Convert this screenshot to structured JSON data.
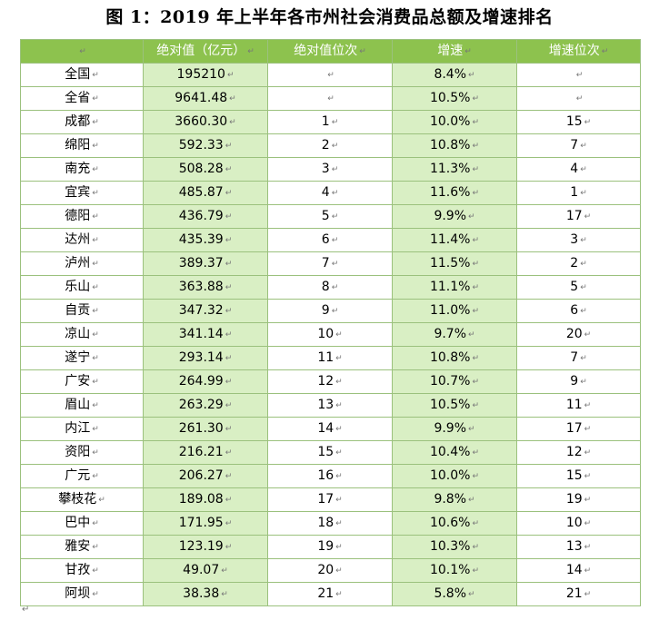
{
  "title": "图 1：2019 年上半年各市州社会消费品总额及增速排名",
  "paragraph_mark": "↵",
  "header": [
    "",
    "绝对值（亿元）",
    "绝对值位次",
    "增速",
    "增速位次"
  ],
  "rows": [
    [
      "全国",
      "195210",
      "",
      "8.4%",
      ""
    ],
    [
      "全省",
      "9641.48",
      "",
      "10.5%",
      ""
    ],
    [
      "成都",
      "3660.30",
      "1",
      "10.0%",
      "15"
    ],
    [
      "绵阳",
      "592.33",
      "2",
      "10.8%",
      "7"
    ],
    [
      "南充",
      "508.28",
      "3",
      "11.3%",
      "4"
    ],
    [
      "宜宾",
      "485.87",
      "4",
      "11.6%",
      "1"
    ],
    [
      "德阳",
      "436.79",
      "5",
      "9.9%",
      "17"
    ],
    [
      "达州",
      "435.39",
      "6",
      "11.4%",
      "3"
    ],
    [
      "泸州",
      "389.37",
      "7",
      "11.5%",
      "2"
    ],
    [
      "乐山",
      "363.88",
      "8",
      "11.1%",
      "5"
    ],
    [
      "自贡",
      "347.32",
      "9",
      "11.0%",
      "6"
    ],
    [
      "凉山",
      "341.14",
      "10",
      "9.7%",
      "20"
    ],
    [
      "遂宁",
      "293.14",
      "11",
      "10.8%",
      "7"
    ],
    [
      "广安",
      "264.99",
      "12",
      "10.7%",
      "9"
    ],
    [
      "眉山",
      "263.29",
      "13",
      "10.5%",
      "11"
    ],
    [
      "内江",
      "261.30",
      "14",
      "9.9%",
      "17"
    ],
    [
      "资阳",
      "216.21",
      "15",
      "10.4%",
      "12"
    ],
    [
      "广元",
      "206.27",
      "16",
      "10.0%",
      "15"
    ],
    [
      "攀枝花",
      "189.08",
      "17",
      "9.8%",
      "19"
    ],
    [
      "巴中",
      "171.95",
      "18",
      "10.6%",
      "10"
    ],
    [
      "雅安",
      "123.19",
      "19",
      "10.3%",
      "13"
    ],
    [
      "甘孜",
      "49.07",
      "20",
      "10.1%",
      "14"
    ],
    [
      "阿坝",
      "38.38",
      "21",
      "5.8%",
      "21"
    ]
  ]
}
